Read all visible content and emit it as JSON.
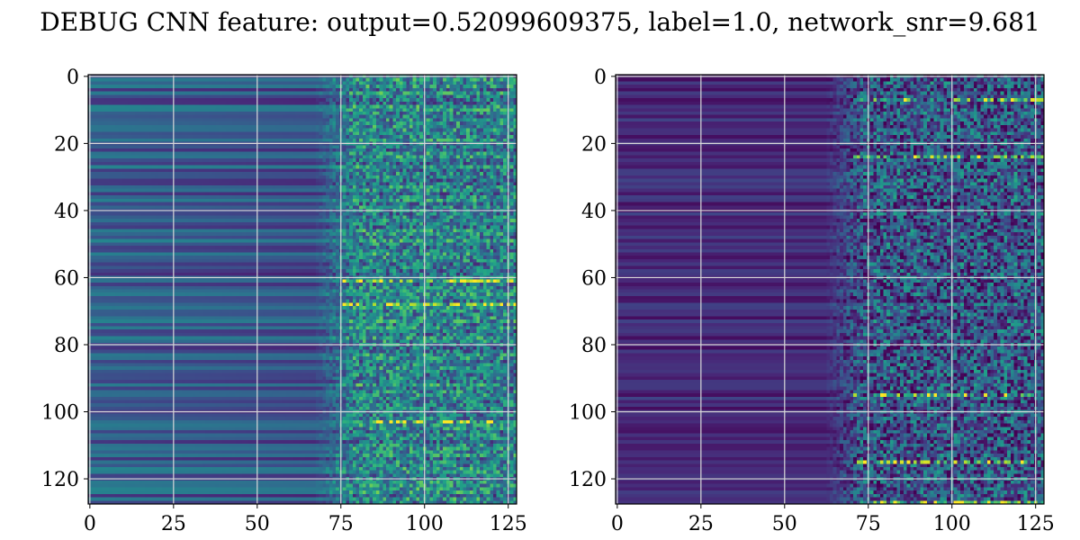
{
  "figure": {
    "title": "DEBUG CNN feature: output=0.52099609375, label=1.0, network_snr=9.681"
  },
  "chart_data": [
    {
      "type": "heatmap",
      "title": "",
      "xlabel": "",
      "ylabel": "",
      "shape": [
        128,
        128
      ],
      "xlim": [
        0,
        127
      ],
      "ylim": [
        127,
        0
      ],
      "x_ticks": [
        0,
        25,
        50,
        75,
        100,
        125
      ],
      "y_ticks": [
        0,
        20,
        40,
        60,
        80,
        100,
        120
      ],
      "grid": true,
      "colormap": "viridis",
      "colormap_stops": [
        "#440154",
        "#482878",
        "#3e4989",
        "#31688e",
        "#26828e",
        "#1f9e89",
        "#35b779",
        "#6ece58",
        "#b5de2b",
        "#fde725"
      ],
      "grid_color": "#d9d9d9",
      "background_level": 0.3,
      "noise_onset_column": 75,
      "bright_rows": [
        61,
        68,
        103
      ]
    },
    {
      "type": "heatmap",
      "title": "",
      "xlabel": "",
      "ylabel": "",
      "shape": [
        128,
        128
      ],
      "xlim": [
        0,
        127
      ],
      "ylim": [
        127,
        0
      ],
      "x_ticks": [
        0,
        25,
        50,
        75,
        100,
        125
      ],
      "y_ticks": [
        0,
        20,
        40,
        60,
        80,
        100,
        120
      ],
      "grid": true,
      "colormap": "viridis",
      "colormap_stops": [
        "#440154",
        "#482878",
        "#3e4989",
        "#31688e",
        "#26828e",
        "#1f9e89",
        "#35b779",
        "#6ece58",
        "#b5de2b",
        "#fde725"
      ],
      "grid_color": "#d9d9d9",
      "background_level": 0.12,
      "noise_onset_column": 70,
      "bright_rows": [
        7,
        24,
        95,
        115,
        127
      ]
    }
  ]
}
